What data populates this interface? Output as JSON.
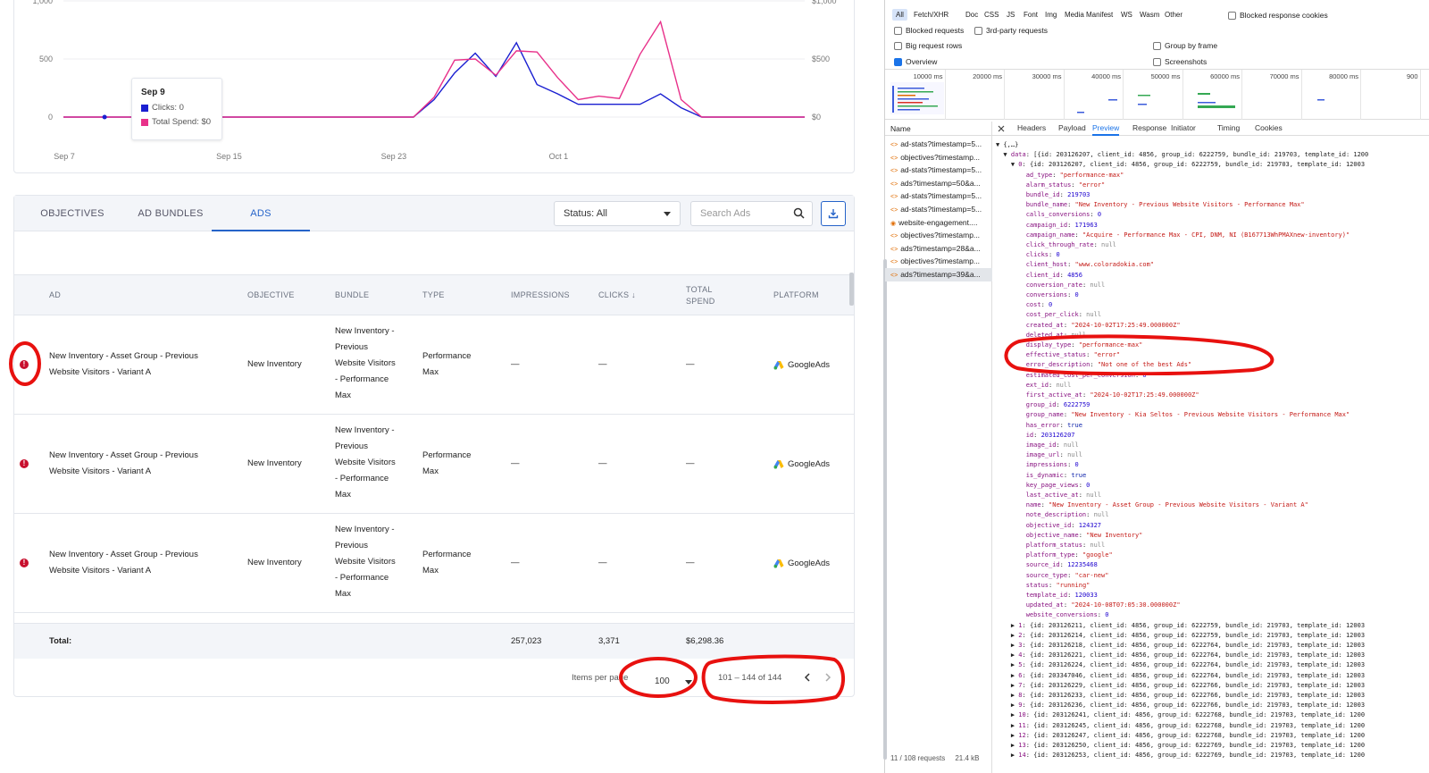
{
  "chart": {
    "left_ticks": [
      "1,000",
      "500",
      "0"
    ],
    "right_ticks": [
      "$1,000",
      "$500",
      "$0"
    ],
    "x_ticks": [
      "Sep 7",
      "Sep 15",
      "Sep 23",
      "Oct 1"
    ],
    "tooltip": {
      "date": "Sep 9",
      "clicks": "Clicks: 0",
      "spend": "Total Spend: $0"
    },
    "colors": {
      "clicks": "#1a1fd1",
      "spend": "#e8318a"
    }
  },
  "chart_data": {
    "type": "line",
    "xlabel": "",
    "ylabel": "",
    "x_ticks": [
      "Sep 7",
      "Sep 15",
      "Sep 23",
      "Oct 1"
    ],
    "ylim": [
      0,
      1000
    ],
    "ylim_right": [
      0,
      1000
    ],
    "x": [
      0,
      1,
      2,
      3,
      4,
      5,
      6,
      7,
      8,
      9,
      10,
      11,
      12,
      13,
      14,
      15,
      16,
      17,
      18,
      19,
      20,
      21,
      22,
      23,
      24,
      25,
      26,
      27,
      28,
      29,
      30,
      31,
      32,
      33,
      34,
      35,
      36
    ],
    "series": [
      {
        "name": "Clicks",
        "values": [
          0,
          0,
          0,
          0,
          0,
          0,
          0,
          0,
          0,
          0,
          0,
          0,
          0,
          0,
          0,
          0,
          0,
          0,
          150,
          380,
          550,
          350,
          640,
          280,
          200,
          110,
          110,
          110,
          110,
          200,
          80,
          0,
          0,
          0,
          0,
          0,
          0
        ]
      },
      {
        "name": "Total Spend",
        "values": [
          0,
          0,
          0,
          0,
          0,
          0,
          0,
          0,
          0,
          0,
          0,
          0,
          0,
          0,
          0,
          0,
          0,
          0,
          170,
          490,
          500,
          360,
          570,
          560,
          340,
          150,
          180,
          160,
          540,
          820,
          150,
          0,
          0,
          0,
          0,
          0,
          0
        ]
      }
    ]
  },
  "tabs": [
    "OBJECTIVES",
    "AD BUNDLES",
    "ADS"
  ],
  "status_select": "Status: All",
  "search_placeholder": "Search Ads",
  "columns": {
    "ad": "AD",
    "objective": "OBJECTIVE",
    "bundle": "BUNDLE",
    "type": "TYPE",
    "impressions": "IMPRESSIONS",
    "clicks": "CLICKS ↓",
    "total_spend_1": "TOTAL",
    "total_spend_2": "SPEND",
    "platform": "PLATFORM"
  },
  "rows": [
    {
      "ad_1": "New Inventory - Asset Group - Previous",
      "ad_2": "Website Visitors - Variant A",
      "objective": "New Inventory",
      "bundle": [
        "New Inventory -",
        "Previous",
        "Website Visitors",
        "- Performance",
        "Max"
      ],
      "type_1": "Performance",
      "type_2": "Max",
      "impressions": "—",
      "clicks": "—",
      "spend": "—",
      "platform": "GoogleAds"
    },
    {
      "ad_1": "New Inventory - Asset Group - Previous",
      "ad_2": "Website Visitors - Variant A",
      "objective": "New Inventory",
      "bundle": [
        "New Inventory -",
        "Previous",
        "Website Visitors",
        "- Performance",
        "Max"
      ],
      "type_1": "Performance",
      "type_2": "Max",
      "impressions": "—",
      "clicks": "—",
      "spend": "—",
      "platform": "GoogleAds"
    },
    {
      "ad_1": "New Inventory - Asset Group - Previous",
      "ad_2": "Website Visitors - Variant A",
      "objective": "New Inventory",
      "bundle": [
        "New Inventory -",
        "Previous",
        "Website Visitors",
        "- Performance",
        "Max"
      ],
      "type_1": "Performance",
      "type_2": "Max",
      "impressions": "—",
      "clicks": "—",
      "spend": "—",
      "platform": "GoogleAds"
    }
  ],
  "totals": {
    "label": "Total:",
    "impressions": "257,023",
    "clicks": "3,371",
    "spend": "$6,298.36"
  },
  "pager": {
    "items_per_page_label": "Items per page",
    "items_per_page": "100",
    "range": "101 – 144 of 144"
  },
  "devtools": {
    "filters": [
      "All",
      "Fetch/XHR",
      "Doc",
      "CSS",
      "JS",
      "Font",
      "Img",
      "Media",
      "Manifest",
      "WS",
      "Wasm",
      "Other"
    ],
    "blocked_cookies": "Blocked response cookies",
    "blocked_requests": "Blocked requests",
    "third_party": "3rd-party requests",
    "big_rows": "Big request rows",
    "group_frame": "Group by frame",
    "overview": "Overview",
    "screenshots": "Screenshots",
    "timeline_ticks": [
      "10000 ms",
      "20000 ms",
      "30000 ms",
      "40000 ms",
      "50000 ms",
      "60000 ms",
      "70000 ms",
      "80000 ms",
      "900"
    ],
    "name_header": "Name",
    "requests": [
      "ad-stats?timestamp=5...",
      "objectives?timestamp...",
      "ad-stats?timestamp=5...",
      "ads?timestamp=50&a...",
      "ad-stats?timestamp=5...",
      "ad-stats?timestamp=5...",
      "website-engagement....",
      "objectives?timestamp...",
      "ads?timestamp=28&a...",
      "objectives?timestamp...",
      "ads?timestamp=39&a..."
    ],
    "footer_requests": "11 / 108 requests",
    "footer_size": "21.4 kB",
    "panel_tabs": [
      "Headers",
      "Payload",
      "Preview",
      "Response",
      "Initiator",
      "Timing",
      "Cookies"
    ],
    "json_lines": [
      "▼ {,…}",
      "  ▼ data: [{id: 203126207, client_id: 4856, group_id: 6222759, bundle_id: 219703, template_id: 1200",
      "    ▼ 0: {id: 203126207, client_id: 4856, group_id: 6222759, bundle_id: 219703, template_id: 12003",
      "        ad_type: \"performance-max\"",
      "        alarm_status: \"error\"",
      "        bundle_id: 219703",
      "        bundle_name: \"New Inventory - Previous Website Visitors - Performance Max\"",
      "        calls_conversions: 0",
      "        campaign_id: 171963",
      "        campaign_name: \"Acquire - Performance Max - CPI, DNM, NI (B167713WhPMAXnew-inventory)\"",
      "        click_through_rate: null",
      "        clicks: 0",
      "        client_host: \"www.coloradokia.com\"",
      "        client_id: 4856",
      "        conversion_rate: null",
      "        conversions: 0",
      "        cost: 0",
      "        cost_per_click: null",
      "        created_at: \"2024-10-02T17:25:49.000000Z\"",
      "        deleted_at: null",
      "        display_type: \"performance-max\"",
      "        effective_status: \"error\"",
      "        error_description: \"Not one of the best Ads\"",
      "        estimated_cost_per_conversion: 0",
      "        ext_id: null",
      "        first_active_at: \"2024-10-02T17:25:49.000000Z\"",
      "        group_id: 6222759",
      "        group_name: \"New Inventory - Kia Seltos - Previous Website Visitors - Performance Max\"",
      "        has_error: true",
      "        id: 203126207",
      "        image_id: null",
      "        image_url: null",
      "        impressions: 0",
      "        is_dynamic: true",
      "        key_page_views: 0",
      "        last_active_at: null",
      "        name: \"New Inventory - Asset Group - Previous Website Visitors - Variant A\"",
      "        note_description: null",
      "        objective_id: 124327",
      "        objective_name: \"New Inventory\"",
      "        platform_status: null",
      "        platform_type: \"google\"",
      "        source_id: 12235468",
      "        source_type: \"car-new\"",
      "        status: \"running\"",
      "        template_id: 120033",
      "        updated_at: \"2024-10-08T07:05:30.000000Z\"",
      "        website_conversions: 0",
      "    ▶ 1: {id: 203126211, client_id: 4856, group_id: 6222759, bundle_id: 219703, template_id: 12003",
      "    ▶ 2: {id: 203126214, client_id: 4856, group_id: 6222759, bundle_id: 219703, template_id: 12003",
      "    ▶ 3: {id: 203126218, client_id: 4856, group_id: 6222764, bundle_id: 219703, template_id: 12003",
      "    ▶ 4: {id: 203126221, client_id: 4856, group_id: 6222764, bundle_id: 219703, template_id: 12003",
      "    ▶ 5: {id: 203126224, client_id: 4856, group_id: 6222764, bundle_id: 219703, template_id: 12003",
      "    ▶ 6: {id: 203347046, client_id: 4856, group_id: 6222764, bundle_id: 219703, template_id: 12003",
      "    ▶ 7: {id: 203126229, client_id: 4856, group_id: 6222766, bundle_id: 219703, template_id: 12003",
      "    ▶ 8: {id: 203126233, client_id: 4856, group_id: 6222766, bundle_id: 219703, template_id: 12003",
      "    ▶ 9: {id: 203126236, client_id: 4856, group_id: 6222766, bundle_id: 219703, template_id: 12003",
      "    ▶ 10: {id: 203126241, client_id: 4856, group_id: 6222768, bundle_id: 219703, template_id: 1200",
      "    ▶ 11: {id: 203126245, client_id: 4856, group_id: 6222768, bundle_id: 219703, template_id: 1200",
      "    ▶ 12: {id: 203126247, client_id: 4856, group_id: 6222768, bundle_id: 219703, template_id: 1200",
      "    ▶ 13: {id: 203126250, client_id: 4856, group_id: 6222769, bundle_id: 219703, template_id: 1200",
      "    ▶ 14: {id: 203126253, client_id: 4856, group_id: 6222769, bundle_id: 219703, template_id: 1200"
    ]
  }
}
